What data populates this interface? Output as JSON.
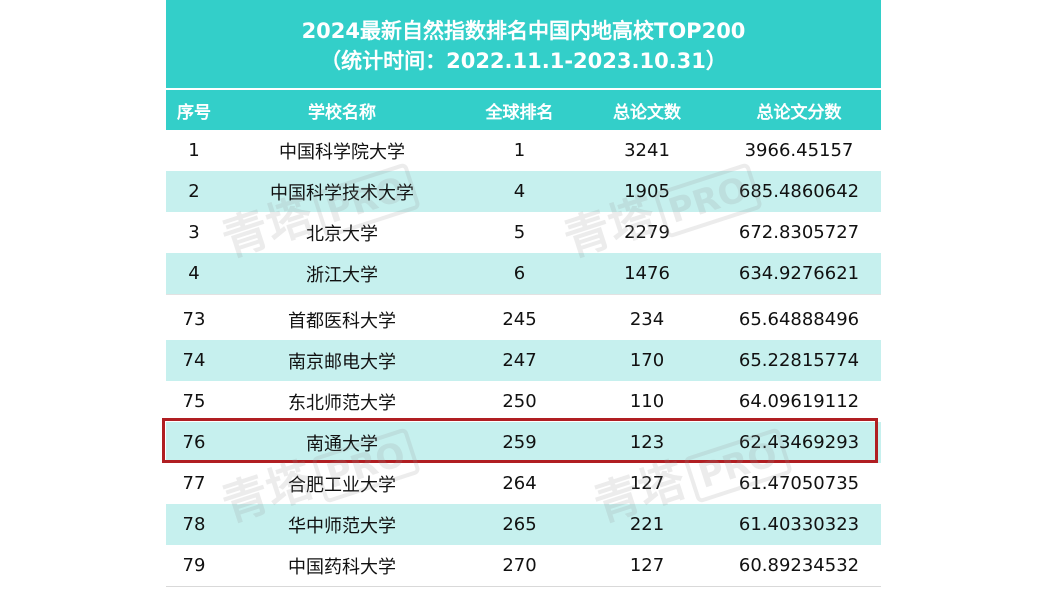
{
  "title": {
    "line1": "2024最新自然指数排名中国内地高校TOP200",
    "line2": "（统计时间：2022.11.1-2023.10.31）"
  },
  "headers": {
    "rank": "序号",
    "school": "学校名称",
    "global": "全球排名",
    "count": "总论文数",
    "score": "总论文分数"
  },
  "rows_top": [
    {
      "rank": "1",
      "school": "中国科学院大学",
      "global": "1",
      "count": "3241",
      "score": "3966.45157"
    },
    {
      "rank": "2",
      "school": "中国科学技术大学",
      "global": "4",
      "count": "1905",
      "score": "685.4860642"
    },
    {
      "rank": "3",
      "school": "北京大学",
      "global": "5",
      "count": "2279",
      "score": "672.8305727"
    },
    {
      "rank": "4",
      "school": "浙江大学",
      "global": "6",
      "count": "1476",
      "score": "634.9276621"
    }
  ],
  "rows_bottom": [
    {
      "rank": "73",
      "school": "首都医科大学",
      "global": "245",
      "count": "234",
      "score": "65.64888496"
    },
    {
      "rank": "74",
      "school": "南京邮电大学",
      "global": "247",
      "count": "170",
      "score": "65.22815774"
    },
    {
      "rank": "75",
      "school": "东北师范大学",
      "global": "250",
      "count": "110",
      "score": "64.09619112"
    },
    {
      "rank": "76",
      "school": "南通大学",
      "global": "259",
      "count": "123",
      "score": "62.43469293"
    },
    {
      "rank": "77",
      "school": "合肥工业大学",
      "global": "264",
      "count": "127",
      "score": "61.47050735"
    },
    {
      "rank": "78",
      "school": "华中师范大学",
      "global": "265",
      "count": "221",
      "score": "61.40330323"
    },
    {
      "rank": "79",
      "school": "中国药科大学",
      "global": "270",
      "count": "127",
      "score": "60.89234532"
    }
  ],
  "highlighted_rank": "76",
  "watermark": {
    "text": "青塔",
    "box": "PRO"
  },
  "colors": {
    "header": "#33cfc9",
    "stripe": "#c6f0ee",
    "highlight": "#b01e22"
  }
}
